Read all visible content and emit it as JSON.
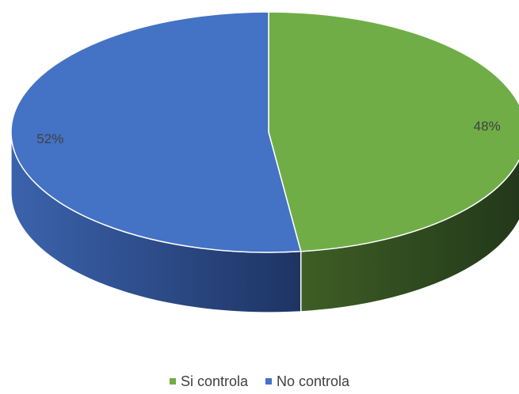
{
  "chart_data": {
    "type": "pie",
    "categories": [
      "Si controla",
      "No controla"
    ],
    "values": [
      48,
      52
    ],
    "labels": [
      "48%",
      "52%"
    ],
    "colors": [
      "#70ad47",
      "#4472c4"
    ],
    "style": "3d",
    "legend_position": "bottom",
    "title": ""
  },
  "legend": {
    "items": [
      {
        "label": "Si controla",
        "color": "#70ad47"
      },
      {
        "label": "No controla",
        "color": "#4472c4"
      }
    ]
  }
}
